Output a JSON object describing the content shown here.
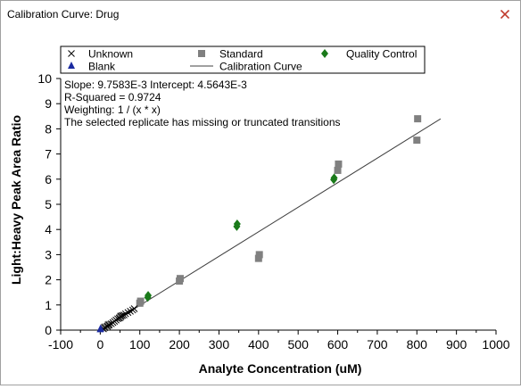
{
  "window": {
    "title": "Calibration Curve: Drug",
    "close_icon": "close-icon"
  },
  "chart_data": {
    "type": "scatter",
    "xlabel": "Analyte Concentration (uM)",
    "ylabel": "Light:Heavy Peak Area Ratio",
    "xlim": [
      -100,
      1000
    ],
    "ylim": [
      0,
      10
    ],
    "xticks": [
      -100,
      0,
      100,
      200,
      300,
      400,
      500,
      600,
      700,
      800,
      900,
      1000
    ],
    "yticks": [
      0,
      1,
      2,
      3,
      4,
      5,
      6,
      7,
      8,
      9,
      10
    ],
    "legend": {
      "placement": "top",
      "items": [
        {
          "label": "Unknown",
          "marker": "x",
          "color": "#000000"
        },
        {
          "label": "Standard",
          "marker": "square",
          "color": "#808080"
        },
        {
          "label": "Quality Control",
          "marker": "diamond",
          "color": "#1a7a1a"
        },
        {
          "label": "Blank",
          "marker": "triangle",
          "color": "#1a2aa0"
        },
        {
          "label": "Calibration Curve",
          "marker": "line",
          "color": "#404040"
        }
      ]
    },
    "annotations": [
      "Slope: 9.7583E-3 Intercept: 4.5643E-3",
      "R-Squared = 0.9724",
      "Weighting: 1 / (x * x)",
      "The selected replicate has missing or truncated transitions"
    ],
    "calibration_curve": {
      "slope": 0.0097583,
      "intercept": 0.0045643,
      "x_range": [
        0,
        860
      ]
    },
    "series": [
      {
        "name": "Standard",
        "marker": "square",
        "color": "#808080",
        "points": [
          [
            10,
            0.1
          ],
          [
            12,
            0.12
          ],
          [
            20,
            0.2
          ],
          [
            22,
            0.22
          ],
          [
            50,
            0.5
          ],
          [
            52,
            0.55
          ],
          [
            100,
            1.07
          ],
          [
            102,
            1.15
          ],
          [
            200,
            1.95
          ],
          [
            202,
            2.05
          ],
          [
            400,
            2.85
          ],
          [
            402,
            3.0
          ],
          [
            600,
            6.35
          ],
          [
            602,
            6.6
          ],
          [
            800,
            7.55
          ],
          [
            802,
            8.4
          ]
        ]
      },
      {
        "name": "Quality Control",
        "marker": "diamond",
        "color": "#1a7a1a",
        "points": [
          [
            120,
            1.3
          ],
          [
            121,
            1.38
          ],
          [
            345,
            4.12
          ],
          [
            346,
            4.22
          ],
          [
            590,
            5.98
          ],
          [
            591,
            6.05
          ]
        ]
      },
      {
        "name": "Unknown",
        "marker": "x",
        "color": "#000000",
        "points": [
          [
            8,
            0.05
          ],
          [
            12,
            0.1
          ],
          [
            18,
            0.15
          ],
          [
            22,
            0.2
          ],
          [
            28,
            0.25
          ],
          [
            32,
            0.3
          ],
          [
            36,
            0.35
          ],
          [
            40,
            0.4
          ],
          [
            44,
            0.45
          ],
          [
            48,
            0.48
          ],
          [
            52,
            0.55
          ],
          [
            56,
            0.58
          ],
          [
            60,
            0.6
          ],
          [
            64,
            0.65
          ],
          [
            70,
            0.7
          ],
          [
            76,
            0.75
          ],
          [
            82,
            0.8
          ],
          [
            86,
            0.85
          ]
        ]
      },
      {
        "name": "Blank",
        "marker": "triangle",
        "color": "#1a2aa0",
        "points": [
          [
            0,
            0.02
          ],
          [
            1,
            0.05
          ]
        ]
      }
    ]
  }
}
